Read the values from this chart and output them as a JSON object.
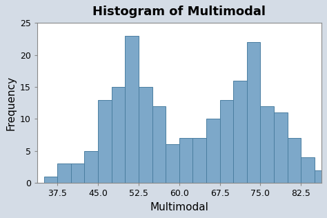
{
  "title": "Histogram of Multimodal",
  "xlabel": "Multimodal",
  "ylabel": "Frequency",
  "bar_color": "#7da8c9",
  "bar_edge_color": "#4a7ea0",
  "background_color": "#d4dce6",
  "plot_bg_color": "#ffffff",
  "bin_edges": [
    35.0,
    37.5,
    40.0,
    42.5,
    45.0,
    47.5,
    50.0,
    52.5,
    55.0,
    57.5,
    60.0,
    62.5,
    65.0,
    67.5,
    70.0,
    72.5,
    75.0,
    77.5,
    80.0,
    82.5,
    85.0,
    87.5
  ],
  "frequencies": [
    1,
    3,
    3,
    5,
    13,
    15,
    23,
    15,
    12,
    6,
    7,
    7,
    10,
    13,
    16,
    22,
    12,
    11,
    7,
    4,
    2
  ],
  "xlim": [
    33.75,
    86.25
  ],
  "ylim": [
    0,
    25
  ],
  "yticks": [
    0,
    5,
    10,
    15,
    20,
    25
  ],
  "xticks": [
    37.5,
    45.0,
    52.5,
    60.0,
    67.5,
    75.0,
    82.5
  ],
  "title_fontsize": 13,
  "label_fontsize": 11,
  "tick_fontsize": 9
}
